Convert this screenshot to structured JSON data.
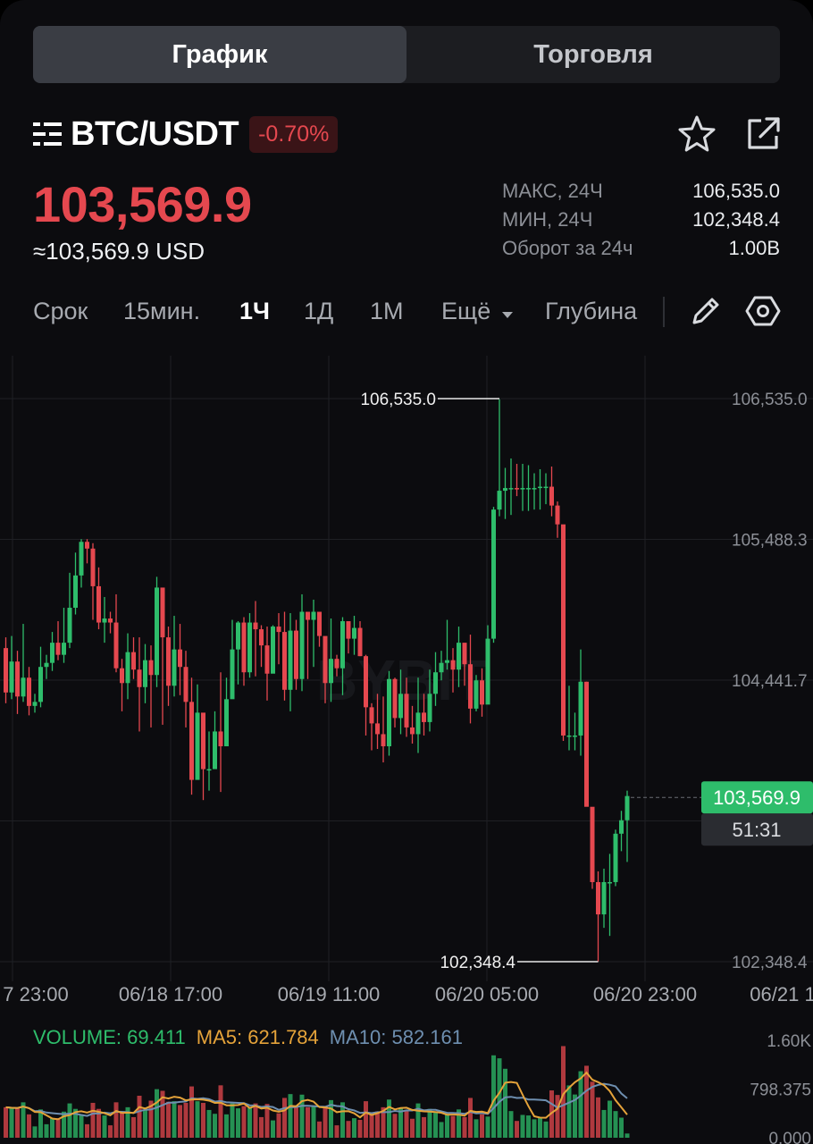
{
  "tabs": {
    "chart": "График",
    "trade": "Торговля"
  },
  "pair": {
    "symbol": "BTC/USDT",
    "change": "-0.70%"
  },
  "price": {
    "last": "103,569.9",
    "usd": "≈103,569.9 USD"
  },
  "stats": [
    {
      "label": "МАКС, 24Ч",
      "value": "106,535.0"
    },
    {
      "label": "МИН, 24Ч",
      "value": "102,348.4"
    },
    {
      "label": "Оборот за 24ч",
      "value": "1.00B"
    }
  ],
  "timeframes": {
    "term": "Срок",
    "m15": "15мин.",
    "h1": "1Ч",
    "d1": "1Д",
    "mo1": "1М",
    "more": "Ещё",
    "depth": "Глубина"
  },
  "icons": {
    "menu": "menu-icon",
    "favorite": "star-icon",
    "share": "external-link-icon",
    "draw": "pencil-icon",
    "settings": "hexagon-settings-icon"
  },
  "colors": {
    "up": "#2ebd6b",
    "down": "#e5484f",
    "ma5": "#e5a33a",
    "ma10": "#6e8fb0",
    "volume_label": "#2ebd6b",
    "grid": "#1f2024"
  },
  "chart_data": {
    "type": "candlestick",
    "interval": "1Ч",
    "y_ticks": [
      "106,535.0",
      "105,488.3",
      "104,441.7",
      "102,348.4"
    ],
    "ylim": [
      102348.4,
      106535.0
    ],
    "x_ticks": [
      "7 23:00",
      "06/18 17:00",
      "06/19 11:00",
      "06/20 05:00",
      "06/20 23:00",
      "06/21 1"
    ],
    "high_marker": "106,535.0",
    "low_marker": "102,348.4",
    "current_price": "103,569.9",
    "countdown": "51:31",
    "candles": [
      [
        104680,
        104350,
        104760,
        104270
      ],
      [
        104350,
        104580,
        104770,
        104300
      ],
      [
        104580,
        104320,
        104660,
        104190
      ],
      [
        104320,
        104460,
        104860,
        104280
      ],
      [
        104460,
        104250,
        104540,
        104180
      ],
      [
        104250,
        104280,
        104340,
        104200
      ],
      [
        104280,
        104540,
        104690,
        104240
      ],
      [
        104540,
        104570,
        104630,
        104450
      ],
      [
        104570,
        104720,
        104800,
        104510
      ],
      [
        104720,
        104630,
        104880,
        104590
      ],
      [
        104630,
        104720,
        104980,
        104570
      ],
      [
        104720,
        104980,
        105240,
        104680
      ],
      [
        104980,
        105220,
        105390,
        104930
      ],
      [
        105220,
        105470,
        105490,
        105130
      ],
      [
        105470,
        105420,
        105490,
        105310
      ],
      [
        105420,
        105140,
        105460,
        104890
      ],
      [
        105140,
        104870,
        105280,
        104820
      ],
      [
        104870,
        104900,
        105060,
        104720
      ],
      [
        104900,
        104870,
        104950,
        104790
      ],
      [
        104870,
        104530,
        105080,
        104500
      ],
      [
        104530,
        104420,
        104600,
        104210
      ],
      [
        104420,
        104650,
        104790,
        104300
      ],
      [
        104650,
        104520,
        104760,
        104450
      ],
      [
        104520,
        104390,
        104760,
        104060
      ],
      [
        104390,
        104590,
        104710,
        104270
      ],
      [
        104590,
        104480,
        104700,
        104090
      ],
      [
        104480,
        105130,
        105210,
        104390
      ],
      [
        105130,
        104760,
        104900,
        104110
      ],
      [
        104760,
        104400,
        104840,
        104250
      ],
      [
        104400,
        104670,
        104920,
        104320
      ],
      [
        104670,
        104540,
        104860,
        104330
      ],
      [
        104540,
        104280,
        104660,
        104090
      ],
      [
        104280,
        103700,
        104460,
        103590
      ],
      [
        103700,
        104200,
        104410,
        103810
      ],
      [
        104200,
        103780,
        104120,
        103550
      ],
      [
        103780,
        103780,
        104060,
        103620
      ],
      [
        103780,
        104060,
        104210,
        103840
      ],
      [
        104060,
        103950,
        104500,
        103610
      ],
      [
        103950,
        104300,
        104460,
        104100
      ],
      [
        104300,
        104670,
        104890,
        104330
      ],
      [
        104670,
        104870,
        104880,
        104410
      ],
      [
        104870,
        104500,
        104910,
        104400
      ],
      [
        104500,
        104870,
        104940,
        104460
      ],
      [
        104870,
        104820,
        105030,
        104470
      ],
      [
        104820,
        104700,
        104850,
        104540
      ],
      [
        104700,
        104490,
        104840,
        104290
      ],
      [
        104490,
        104840,
        104850,
        104600
      ],
      [
        104840,
        104800,
        104940,
        104560
      ],
      [
        104800,
        104370,
        104950,
        104290
      ],
      [
        104370,
        104810,
        104940,
        104210
      ],
      [
        104810,
        104450,
        104890,
        104370
      ],
      [
        104450,
        104950,
        105080,
        104360
      ],
      [
        104950,
        104890,
        104940,
        104450
      ],
      [
        104890,
        104950,
        105040,
        104540
      ],
      [
        104950,
        104770,
        104920,
        104690
      ],
      [
        104770,
        104420,
        104760,
        104270
      ],
      [
        104420,
        104600,
        104900,
        104280
      ],
      [
        104600,
        104530,
        104630,
        104470
      ],
      [
        104530,
        104880,
        104910,
        104330
      ],
      [
        104880,
        104750,
        104880,
        104640
      ],
      [
        104750,
        104830,
        104920,
        104630
      ],
      [
        104830,
        104620,
        104880,
        104620
      ],
      [
        104620,
        104240,
        104630,
        104030
      ],
      [
        104240,
        104120,
        104270,
        103920
      ],
      [
        104120,
        104040,
        104340,
        103930
      ],
      [
        104040,
        103950,
        104320,
        103830
      ],
      [
        103950,
        104450,
        104510,
        103880
      ],
      [
        104450,
        104160,
        104460,
        104090
      ],
      [
        104160,
        104340,
        104520,
        104040
      ],
      [
        104340,
        104090,
        104460,
        104020
      ],
      [
        104090,
        104040,
        104250,
        103970
      ],
      [
        104040,
        104200,
        104460,
        103900
      ],
      [
        104200,
        104130,
        104340,
        104030
      ],
      [
        104130,
        104340,
        104520,
        104060
      ],
      [
        104340,
        104500,
        104650,
        104250
      ],
      [
        104500,
        104570,
        104660,
        104440
      ],
      [
        104570,
        104590,
        104890,
        104520
      ],
      [
        104590,
        104520,
        104680,
        104350
      ],
      [
        104520,
        104720,
        104840,
        104390
      ],
      [
        104720,
        104560,
        104710,
        104400
      ],
      [
        104560,
        104230,
        104780,
        104120
      ],
      [
        104230,
        104440,
        104480,
        104210
      ],
      [
        104440,
        104260,
        104530,
        104170
      ],
      [
        104260,
        104750,
        104850,
        104530
      ],
      [
        104750,
        105710,
        105730,
        104720
      ],
      [
        105710,
        105850,
        106530,
        105660
      ],
      [
        105850,
        105870,
        106020,
        105640
      ],
      [
        105870,
        105870,
        106090,
        105670
      ],
      [
        105870,
        105860,
        106050,
        105810
      ],
      [
        105860,
        105870,
        106050,
        105700
      ],
      [
        105870,
        105870,
        106040,
        105700
      ],
      [
        105870,
        105870,
        105980,
        105710
      ],
      [
        105870,
        105880,
        106010,
        105710
      ],
      [
        105880,
        105880,
        105980,
        105750
      ],
      [
        105880,
        105740,
        106030,
        105660
      ],
      [
        105740,
        105600,
        105770,
        105500
      ],
      [
        105600,
        104030,
        105330,
        103990
      ],
      [
        104030,
        104030,
        104400,
        103920
      ],
      [
        104030,
        104030,
        104200,
        103920
      ],
      [
        104030,
        104430,
        104670,
        103880
      ],
      [
        104430,
        103500,
        104430,
        103520
      ],
      [
        103500,
        102940,
        103450,
        102890
      ],
      [
        102940,
        102700,
        103020,
        102350
      ],
      [
        102700,
        102940,
        103040,
        102600
      ],
      [
        102940,
        102940,
        103150,
        102540
      ],
      [
        102940,
        103300,
        103330,
        102910
      ],
      [
        103300,
        103400,
        103470,
        103170
      ],
      [
        103400,
        103580,
        103620,
        103090
      ]
    ],
    "volume": {
      "label": "VOLUME: 69.411",
      "ma5": "MA5: 621.784",
      "ma10": "MA10: 582.161",
      "y_ticks": [
        "1.60K",
        "798.375",
        "0.000"
      ],
      "ylim": [
        0,
        1600
      ]
    }
  }
}
